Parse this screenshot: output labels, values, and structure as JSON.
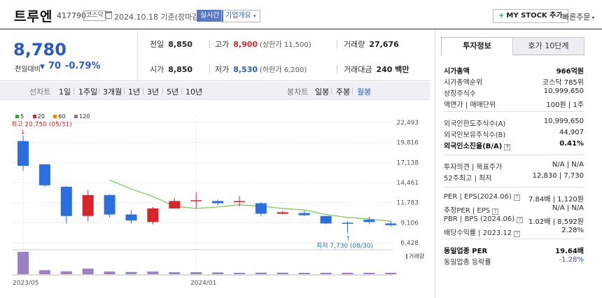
{
  "header": {
    "stock_name": "트루엔",
    "stock_code": "417790",
    "market": "코스닥",
    "base_date": "2024.10.18 기준(장마감)",
    "realtime_label": "실시간",
    "company_overview_label": "기업개요",
    "mystock_label": "MY STOCK 추가",
    "quick_order_label": "빠른주문"
  },
  "summary": {
    "current_price": "8,780",
    "change_label": "전일대비",
    "change_value": "70",
    "change_rate": "-0.79%",
    "prev_close_label": "전일",
    "prev_close": "8,850",
    "high_label": "고가",
    "high": "8,900",
    "upper_limit": "(상한가 11,500)",
    "volume_label": "거래량",
    "volume": "27,676",
    "open_label": "시가",
    "open": "8,850",
    "low_label": "저가",
    "low": "8,530",
    "lower_limit": "(하한가 6,200)",
    "amount_label": "거래대금",
    "amount": "240 백만"
  },
  "toolbar": {
    "line_chart_label": "선차트",
    "periods": [
      "1일",
      "1주일",
      "3개월",
      "1년",
      "3년",
      "5년",
      "10년"
    ],
    "candle_chart_label": "봉차트",
    "candle_periods": [
      "일봉",
      "주봉",
      "월봉"
    ],
    "active_candle_period": "월봉"
  },
  "chart_data": {
    "type": "candlestick",
    "legend": [
      {
        "name": "5",
        "color": "#3aa03a"
      },
      {
        "name": "20",
        "color": "#d7262b"
      },
      {
        "name": "60",
        "color": "#e58a1f"
      },
      {
        "name": "120",
        "color": "#8a6fb5"
      }
    ],
    "y_ticks": [
      "22,493",
      "19,816",
      "17,138",
      "14,461",
      "11,783",
      "9,106",
      "6,428"
    ],
    "ylim": [
      6428,
      22493
    ],
    "x_labels": [
      "2023/05",
      "2024/01"
    ],
    "max_annotation": "최고 20,750 (05/31)",
    "min_annotation": "최저 7,730 (08/30)",
    "candles": [
      {
        "o": 20000,
        "h": 20750,
        "l": 16000,
        "c": 16700
      },
      {
        "o": 16900,
        "h": 16900,
        "l": 13900,
        "c": 14100
      },
      {
        "o": 13900,
        "h": 14000,
        "l": 9000,
        "c": 10000
      },
      {
        "o": 10000,
        "h": 13500,
        "l": 9300,
        "c": 12800
      },
      {
        "o": 12800,
        "h": 12900,
        "l": 9800,
        "c": 10200
      },
      {
        "o": 10200,
        "h": 10800,
        "l": 9000,
        "c": 9400
      },
      {
        "o": 9200,
        "h": 11200,
        "l": 8900,
        "c": 11000
      },
      {
        "o": 11000,
        "h": 12400,
        "l": 11000,
        "c": 12000
      },
      {
        "o": 12000,
        "h": 13200,
        "l": 11000,
        "c": 12100
      },
      {
        "o": 12000,
        "h": 12200,
        "l": 11400,
        "c": 11700
      },
      {
        "o": 12000,
        "h": 12700,
        "l": 11300,
        "c": 12000
      },
      {
        "o": 11700,
        "h": 11800,
        "l": 10000,
        "c": 10300
      },
      {
        "o": 10300,
        "h": 10700,
        "l": 10200,
        "c": 10500
      },
      {
        "o": 10400,
        "h": 10700,
        "l": 10000,
        "c": 10100
      },
      {
        "o": 10000,
        "h": 10000,
        "l": 8900,
        "c": 9000
      },
      {
        "o": 9100,
        "h": 9300,
        "l": 7730,
        "c": 9000
      },
      {
        "o": 9500,
        "h": 9900,
        "l": 8900,
        "c": 9200
      },
      {
        "o": 9000,
        "h": 9300,
        "l": 8600,
        "c": 8780
      }
    ],
    "ma5": [
      null,
      null,
      null,
      null,
      14800,
      13600,
      12600,
      11300,
      11000,
      11200,
      11500,
      11300,
      11000,
      10800,
      10200,
      9800,
      9600,
      9300
    ],
    "volume": [
      100,
      18,
      13,
      25,
      12,
      10,
      12,
      9,
      9,
      8,
      6,
      7,
      7,
      6,
      6,
      5,
      6,
      5
    ],
    "volume_label": "거래량"
  },
  "panel": {
    "tab_invest": "투자정보",
    "tab_bid": "호가 10단계",
    "rows_group1": [
      {
        "k": "시가총액",
        "v": "966억원",
        "bold_k": true,
        "bold_v": true
      },
      {
        "k": "시가총액순위",
        "v": "코스닥 785위"
      },
      {
        "k": "상장주식수",
        "v": "10,999,650"
      },
      {
        "k": "액면가 | 매매단위",
        "v": "100원 | 1주"
      }
    ],
    "rows_group2": [
      {
        "k": "외국인한도주식수(A)",
        "v": "10,999,650"
      },
      {
        "k": "외국인보유주식수(B)",
        "v": "44,907"
      },
      {
        "k": "외국인소진율(B/A)",
        "v": "0.41%",
        "bold_k": true,
        "bold_v": true,
        "q": true
      }
    ],
    "rows_group3": [
      {
        "k": "투자의견 | 목표주가",
        "v": "N/A | N/A"
      },
      {
        "k": "52주최고 | 최저",
        "v": "12,830 | 7,730"
      }
    ],
    "rows_group4": [
      {
        "k": "PER | EPS(2024.06)",
        "v": "7.84배 | 1,120원",
        "q": true
      },
      {
        "k": "추정PER | EPS",
        "v": "N/A | N/A",
        "q": true
      },
      {
        "k": "PBR | BPS (2024.06)",
        "v": "1.02배 | 8,592원",
        "q": true
      },
      {
        "k": "배당수익률 | 2023.12",
        "v": "2.28%",
        "q": true
      }
    ],
    "rows_group5": [
      {
        "k": "동일업종 PER",
        "v": "19.64배",
        "bold_k": true,
        "bold_v": true
      },
      {
        "k": "동일업종 등락률",
        "v": "-1.28%",
        "blue_v": true
      }
    ]
  }
}
